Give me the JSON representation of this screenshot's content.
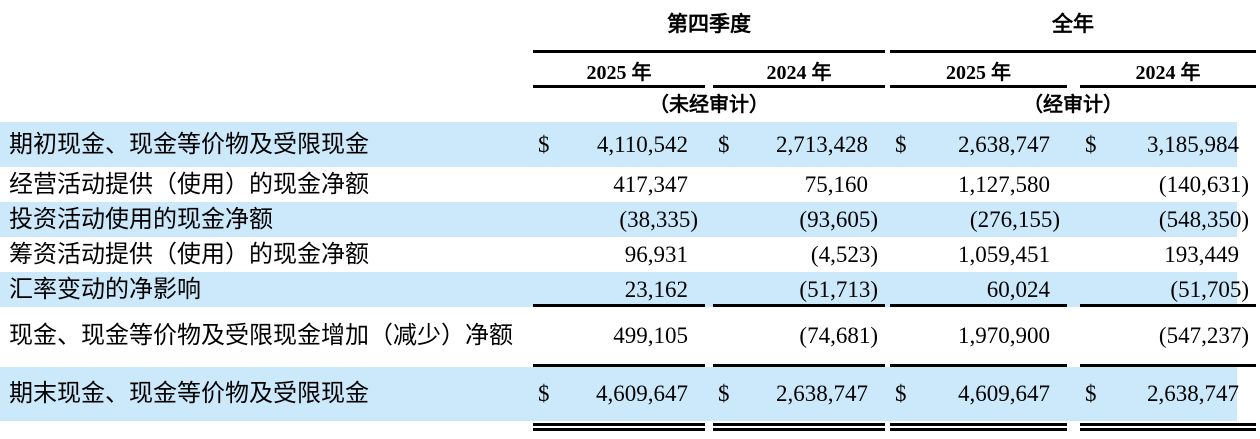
{
  "table": {
    "currency_symbol": "$",
    "colors": {
      "band_blue": "#cbe9fa",
      "rule_black": "#000000"
    },
    "col_groups": [
      {
        "label": "第四季度",
        "audit_note": "（未经审计）",
        "years": [
          "2025 年",
          "2024 年"
        ]
      },
      {
        "label": "全年",
        "audit_note": "（经审计）",
        "years": [
          "2025 年",
          "2024 年"
        ]
      }
    ],
    "rows": [
      {
        "label": "期初现金、现金等价物及受限现金",
        "currency": true,
        "values": [
          "4,110,542",
          "2,713,428",
          "2,638,747",
          "3,185,984"
        ]
      },
      {
        "label": "经营活动提供（使用）的现金净额",
        "values": [
          "417,347",
          "75,160",
          "1,127,580",
          "(140,631)"
        ]
      },
      {
        "label": "投资活动使用的现金净额",
        "values": [
          "(38,335)",
          "(93,605)",
          "(276,155)",
          "(548,350)"
        ]
      },
      {
        "label": "筹资活动提供（使用）的现金净额",
        "values": [
          "96,931",
          "(4,523)",
          "1,059,451",
          "193,449"
        ]
      },
      {
        "label": "汇率变动的净影响",
        "values": [
          "23,162",
          "(51,713)",
          "60,024",
          "(51,705)"
        ]
      },
      {
        "label": "现金、现金等价物及受限现金增加（减少）净额",
        "values": [
          "499,105",
          "(74,681)",
          "1,970,900",
          "(547,237)"
        ]
      },
      {
        "label": "期末现金、现金等价物及受限现金",
        "currency": true,
        "values": [
          "4,609,647",
          "2,638,747",
          "4,609,647",
          "2,638,747"
        ]
      }
    ]
  }
}
